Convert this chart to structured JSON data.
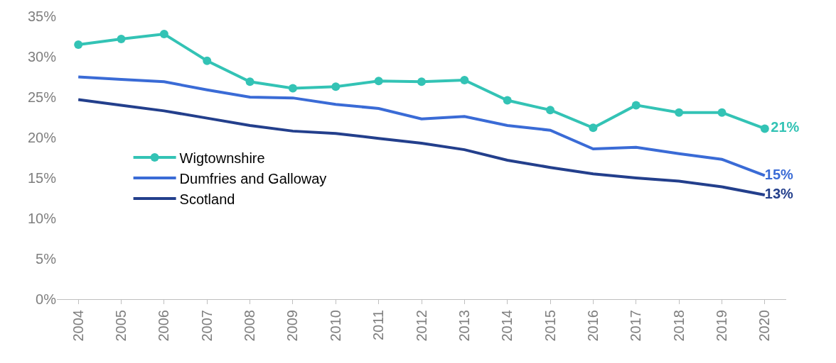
{
  "chart_data": {
    "type": "line",
    "categories": [
      "2004",
      "2005",
      "2006",
      "2007",
      "2008",
      "2009",
      "2010",
      "2011",
      "2012",
      "2013",
      "2014",
      "2015",
      "2016",
      "2017",
      "2018",
      "2019",
      "2020"
    ],
    "series": [
      {
        "name": "Wigtownshire",
        "color": "#33c3b5",
        "marker": "circle",
        "values": [
          31.5,
          32.2,
          32.8,
          29.5,
          26.9,
          26.1,
          26.3,
          27.0,
          26.9,
          27.1,
          24.6,
          23.4,
          21.2,
          24.0,
          23.1,
          23.1,
          21.1
        ],
        "value_labels": [
          null,
          null,
          null,
          null,
          null,
          null,
          null,
          null,
          null,
          null,
          null,
          null,
          null,
          null,
          null,
          null,
          "21%"
        ]
      },
      {
        "name": "Dumfries and Galloway",
        "color": "#3a6bd6",
        "values": [
          27.5,
          27.2,
          26.9,
          25.9,
          25.0,
          24.9,
          24.1,
          23.6,
          22.3,
          22.6,
          21.5,
          20.9,
          18.6,
          18.8,
          18.0,
          17.3,
          15.3
        ],
        "value_labels": [
          null,
          null,
          null,
          null,
          null,
          null,
          null,
          null,
          null,
          null,
          null,
          null,
          null,
          null,
          null,
          null,
          "15%"
        ]
      },
      {
        "name": "Scotland",
        "color": "#233f8c",
        "values": [
          24.7,
          24.0,
          23.3,
          22.4,
          21.5,
          20.8,
          20.5,
          19.9,
          19.3,
          18.5,
          17.2,
          16.3,
          15.5,
          15.0,
          14.6,
          13.9,
          12.9
        ],
        "value_labels": [
          null,
          null,
          null,
          null,
          null,
          null,
          null,
          null,
          null,
          null,
          null,
          null,
          null,
          null,
          null,
          null,
          "13%"
        ]
      }
    ],
    "ylim": [
      0,
      35
    ],
    "yticks": [
      {
        "value": 0,
        "label": "0%"
      },
      {
        "value": 5,
        "label": "5%"
      },
      {
        "value": 10,
        "label": "10%"
      },
      {
        "value": 15,
        "label": "15%"
      },
      {
        "value": 20,
        "label": "20%"
      },
      {
        "value": 25,
        "label": "25%"
      },
      {
        "value": 30,
        "label": "30%"
      },
      {
        "value": 35,
        "label": "35%"
      }
    ],
    "legend": "left"
  }
}
